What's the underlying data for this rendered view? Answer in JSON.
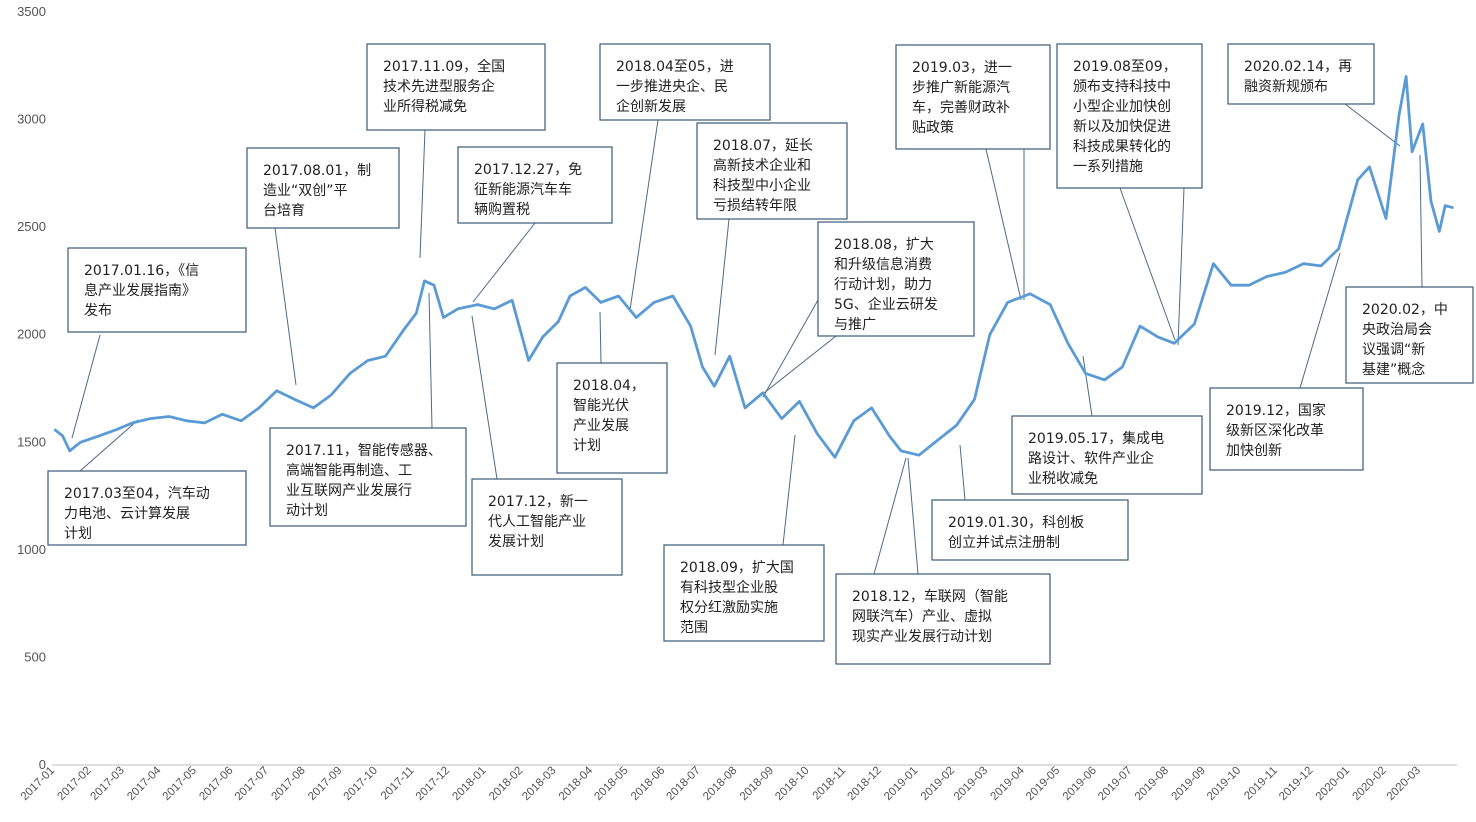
{
  "chart_data": {
    "type": "line",
    "ylim": [
      0,
      3500
    ],
    "yticks": [
      0,
      500,
      1000,
      1500,
      2000,
      2500,
      3000,
      3500
    ],
    "x_labels": [
      "2017-01",
      "2017-02",
      "2017-03",
      "2017-04",
      "2017-05",
      "2017-06",
      "2017-07",
      "2017-08",
      "2017-09",
      "2017-10",
      "2017-11",
      "2017-12",
      "2018-01",
      "2018-02",
      "2018-03",
      "2018-04",
      "2018-05",
      "2018-06",
      "2018-07",
      "2018-08",
      "2018-09",
      "2018-10",
      "2018-11",
      "2018-12",
      "2019-01",
      "2019-02",
      "2019-03",
      "2019-04",
      "2019-05",
      "2019-06",
      "2019-07",
      "2019-08",
      "2019-09",
      "2019-10",
      "2019-11",
      "2019-12",
      "2020-01",
      "2020-02",
      "2020-03"
    ],
    "grid": false,
    "line_color": "#5b9bd5",
    "series": [
      {
        "x": [
          "2017-01-03",
          "2017-01-10",
          "2017-01-16",
          "2017-01-25",
          "2017-02-10",
          "2017-02-25",
          "2017-03-10",
          "2017-03-25",
          "2017-04-10",
          "2017-04-25",
          "2017-05-10",
          "2017-05-25",
          "2017-06-10",
          "2017-06-25",
          "2017-07-10",
          "2017-07-25",
          "2017-08-10",
          "2017-08-25",
          "2017-09-10",
          "2017-09-25",
          "2017-10-10",
          "2017-10-25",
          "2017-11-05",
          "2017-11-12",
          "2017-11-20",
          "2017-11-28",
          "2017-12-10",
          "2017-12-27",
          "2018-01-10",
          "2018-01-25",
          "2018-02-08",
          "2018-02-20",
          "2018-03-05",
          "2018-03-15",
          "2018-03-28",
          "2018-04-10",
          "2018-04-25",
          "2018-05-10",
          "2018-05-25",
          "2018-06-10",
          "2018-06-25",
          "2018-07-05",
          "2018-07-15",
          "2018-07-28",
          "2018-08-10",
          "2018-08-25",
          "2018-09-10",
          "2018-09-25",
          "2018-10-10",
          "2018-10-25",
          "2018-11-10",
          "2018-11-25",
          "2018-12-10",
          "2018-12-20",
          "2019-01-04",
          "2019-01-20",
          "2019-02-05",
          "2019-02-20",
          "2019-03-05",
          "2019-03-20",
          "2019-04-08",
          "2019-04-25",
          "2019-05-10",
          "2019-05-25",
          "2019-06-10",
          "2019-06-25",
          "2019-07-10",
          "2019-07-25",
          "2019-08-08",
          "2019-08-25",
          "2019-09-10",
          "2019-09-25",
          "2019-10-10",
          "2019-10-25",
          "2019-11-10",
          "2019-11-25",
          "2019-12-10",
          "2019-12-25",
          "2020-01-10",
          "2020-01-20",
          "2020-02-03",
          "2020-02-14",
          "2020-02-20",
          "2020-02-25",
          "2020-03-05",
          "2020-03-12",
          "2020-03-19",
          "2020-03-24",
          "2020-03-31"
        ],
        "y": [
          1560,
          1530,
          1460,
          1500,
          1530,
          1560,
          1590,
          1610,
          1620,
          1600,
          1590,
          1630,
          1600,
          1660,
          1740,
          1700,
          1660,
          1720,
          1820,
          1880,
          1900,
          2020,
          2100,
          2250,
          2230,
          2080,
          2120,
          2140,
          2120,
          2160,
          1880,
          1990,
          2060,
          2180,
          2220,
          2150,
          2180,
          2080,
          2150,
          2180,
          2040,
          1850,
          1760,
          1900,
          1660,
          1730,
          1610,
          1690,
          1540,
          1430,
          1600,
          1660,
          1530,
          1460,
          1440,
          1510,
          1580,
          1700,
          2000,
          2150,
          2190,
          2140,
          1960,
          1820,
          1790,
          1850,
          2040,
          1990,
          1960,
          2050,
          2330,
          2230,
          2230,
          2270,
          2290,
          2330,
          2320,
          2400,
          2720,
          2780,
          2540,
          3020,
          3200,
          2850,
          2980,
          2620,
          2480,
          2600,
          2590
        ]
      }
    ],
    "annotations": [
      {
        "text": [
          "2017.01.16，《信",
          "息产业发展指南》",
          "发布"
        ]
      },
      {
        "text": [
          "2017.03至04，汽车动",
          "力电池、云计算发展",
          "计划"
        ]
      },
      {
        "text": [
          "2017.08.01，制",
          "造业“双创”平",
          "台培育"
        ]
      },
      {
        "text": [
          "2017.11，智能传感器、",
          "高端智能再制造、工",
          "业互联网产业发展行",
          "动计划"
        ]
      },
      {
        "text": [
          "2017.11.09，全国",
          "技术先进型服务企",
          "业所得税减免"
        ]
      },
      {
        "text": [
          "2017.12.27，免",
          "征新能源汽车车",
          "辆购置税"
        ]
      },
      {
        "text": [
          "2017.12，新一",
          "代人工智能产业",
          "发展计划"
        ]
      },
      {
        "text": [
          "2018.04至05，进",
          "一步推进央企、民",
          "企创新发展"
        ]
      },
      {
        "text": [
          "2018.04，",
          "智能光伏",
          "产业发展",
          "计划"
        ]
      },
      {
        "text": [
          "2018.07，延长",
          "高新技术企业和",
          "科技型中小企业",
          "亏损结转年限"
        ]
      },
      {
        "text": [
          "2018.08，扩大",
          "和升级信息消费",
          "行动计划，助力",
          "5G、企业云研发",
          "与推广"
        ]
      },
      {
        "text": [
          "2018.09，扩大国",
          "有科技型企业股",
          "权分红激励实施",
          "范围"
        ]
      },
      {
        "text": [
          "2018.12，车联网（智能",
          "网联汽车）产业、虚拟",
          "现实产业发展行动计划"
        ]
      },
      {
        "text": [
          "2019.01.30，科创板",
          "创立并试点注册制"
        ]
      },
      {
        "text": [
          "2019.03，进一",
          "步推广新能源汽",
          "车，完善财政补",
          "贴政策"
        ]
      },
      {
        "text": [
          "2019.05.17，集成电",
          "路设计、软件产业企",
          "业税收减免"
        ]
      },
      {
        "text": [
          "2019.08至09，",
          "颁布支持科技中",
          "小型企业加快创",
          "新以及加快促进",
          "科技成果转化的",
          "一系列措施"
        ]
      },
      {
        "text": [
          "2019.12，国家",
          "级新区深化改革",
          "加快创新"
        ]
      },
      {
        "text": [
          "2020.02.14，再",
          "融资新规颁布"
        ]
      },
      {
        "text": [
          "2020.02，中",
          "央政治局会",
          "议强调“新",
          "基建”概念"
        ]
      }
    ]
  }
}
